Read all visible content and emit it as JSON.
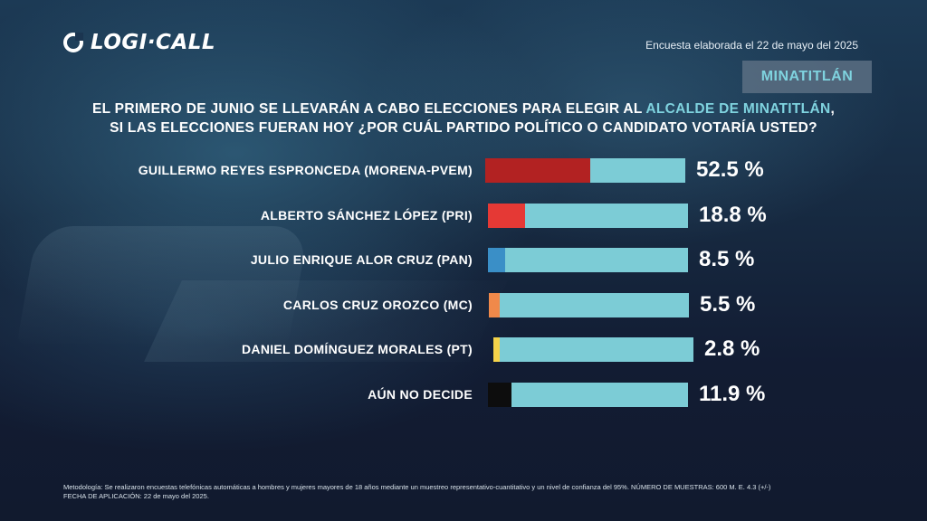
{
  "brand": {
    "logo_text": "LOGI·CALL"
  },
  "header": {
    "survey_date": "Encuesta elaborada el 22 de mayo del 2025",
    "city_badge": "MINATITLÁN"
  },
  "question": {
    "line1_part1": "EL PRIMERO DE JUNIO SE LLEVARÁN A CABO ELECCIONES PARA ELEGIR AL ",
    "line1_highlight": "ALCALDE DE MINATITLÁN",
    "line1_part2": ",",
    "line2": "SI LAS ELECCIONES FUERAN HOY ¿POR CUÁL PARTIDO POLÍTICO O CANDIDATO VOTARÍA USTED?"
  },
  "chart_data": {
    "type": "bar",
    "orientation": "horizontal",
    "categories": [
      "GUILLERMO REYES ESPRONCEDA (MORENA-PVEM)",
      "ALBERTO SÁNCHEZ LÓPEZ (PRI)",
      "JULIO ENRIQUE ALOR CRUZ  (PAN)",
      "CARLOS CRUZ OROZCO (MC)",
      "DANIEL DOMÍNGUEZ MORALES (PT)",
      "AÚN NO DECIDE"
    ],
    "values": [
      52.5,
      18.8,
      8.5,
      5.5,
      2.8,
      11.9
    ],
    "value_labels": [
      "52.5 %",
      "18.8 %",
      "8.5 %",
      "5.5 %",
      "2.8 %",
      "11.9 %"
    ],
    "bar_colors": [
      "#b22222",
      "#e53935",
      "#3a8fc7",
      "#f0894a",
      "#f5d34a",
      "#0d0d0d"
    ],
    "track_color": "#7cccd6",
    "unit": "%",
    "xlim": [
      0,
      100
    ]
  },
  "footer": {
    "methodology": "Metodología: Se realizaron encuestas telefónicas automáticas a hombres y mujeres mayores de 18 años mediante un muestreo representativo-cuantitativo y un nivel de confianza del 95%. NÚMERO DE MUESTRAS: 600 M. E. 4.3 (+/-)",
    "application_date": "FECHA DE APLICACIÓN: 22 de mayo del 2025."
  }
}
